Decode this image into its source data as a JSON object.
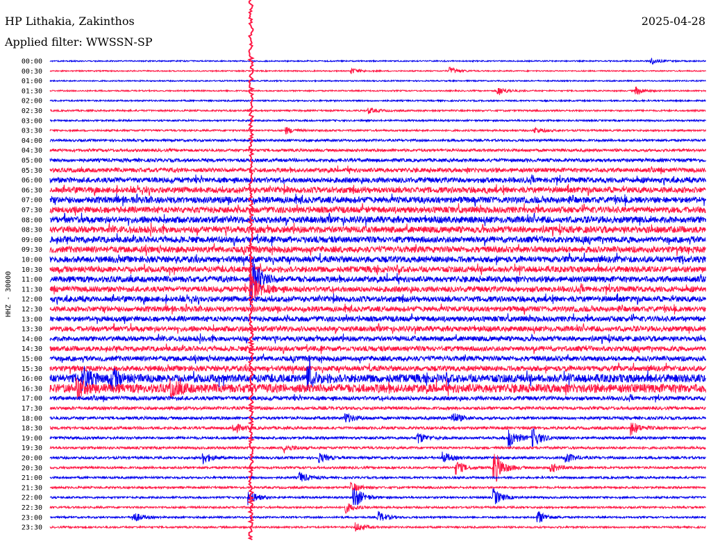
{
  "header": {
    "station": "HP Lithakia, Zakinthos",
    "date": "2025-04-28",
    "filter": "Applied filter: WWSSN-SP"
  },
  "colors": {
    "trace_a": "#0000ee",
    "trace_b": "#ff1744",
    "background": "#ffffff",
    "text": "#000000"
  },
  "chart_data": {
    "type": "line",
    "title": "HP Lithakia, Zakinthos",
    "ylabel": "HHZ - 30000",
    "x_range_minutes": [
      0,
      30
    ],
    "row_labels": [
      "00:00",
      "00:30",
      "01:00",
      "01:30",
      "02:00",
      "02:30",
      "03:00",
      "03:30",
      "04:00",
      "04:30",
      "05:00",
      "05:30",
      "06:00",
      "06:30",
      "07:00",
      "07:30",
      "08:00",
      "08:30",
      "09:00",
      "09:30",
      "10:00",
      "10:30",
      "11:00",
      "11:30",
      "12:00",
      "12:30",
      "13:00",
      "13:30",
      "14:00",
      "14:30",
      "15:00",
      "15:30",
      "16:00",
      "16:30",
      "17:00",
      "17:30",
      "18:00",
      "18:30",
      "19:00",
      "19:30",
      "20:00",
      "20:30",
      "21:00",
      "21:30",
      "22:00",
      "22:30",
      "23:00",
      "23:30"
    ],
    "row_colors": [
      "trace_a",
      "trace_b"
    ],
    "noise_level": [
      0.4,
      0.4,
      0.4,
      0.45,
      0.5,
      0.55,
      0.55,
      0.6,
      0.75,
      0.9,
      1.1,
      1.4,
      1.7,
      1.9,
      2.0,
      2.0,
      2.1,
      2.1,
      2.0,
      2.0,
      2.0,
      1.9,
      1.9,
      1.8,
      1.8,
      1.7,
      1.7,
      1.7,
      1.6,
      1.6,
      1.6,
      1.7,
      2.6,
      2.8,
      1.3,
      1.0,
      0.95,
      0.9,
      0.85,
      0.8,
      0.8,
      0.75,
      0.7,
      0.7,
      0.65,
      0.65,
      0.6,
      0.6
    ],
    "events": [
      {
        "row": 0,
        "minute": 27.5,
        "amplitude": 0.7
      },
      {
        "row": 1,
        "minute": 13.8,
        "amplitude": 0.6
      },
      {
        "row": 1,
        "minute": 18.3,
        "amplitude": 0.8
      },
      {
        "row": 3,
        "minute": 20.5,
        "amplitude": 1.0
      },
      {
        "row": 3,
        "minute": 26.8,
        "amplitude": 0.9
      },
      {
        "row": 5,
        "minute": 14.6,
        "amplitude": 0.6
      },
      {
        "row": 7,
        "minute": 10.8,
        "amplitude": 0.7
      },
      {
        "row": 7,
        "minute": 22.2,
        "amplitude": 0.6
      },
      {
        "row": 22,
        "minute": 9.2,
        "amplitude": 6.0
      },
      {
        "row": 23,
        "minute": 9.2,
        "amplitude": 4.0
      },
      {
        "row": 32,
        "minute": 1.5,
        "amplitude": 2.2
      },
      {
        "row": 32,
        "minute": 2.8,
        "amplitude": 2.0
      },
      {
        "row": 32,
        "minute": 11.8,
        "amplitude": 2.0
      },
      {
        "row": 33,
        "minute": 1.2,
        "amplitude": 2.0
      },
      {
        "row": 33,
        "minute": 5.5,
        "amplitude": 1.8
      },
      {
        "row": 36,
        "minute": 13.5,
        "amplitude": 1.1
      },
      {
        "row": 36,
        "minute": 18.4,
        "amplitude": 1.2
      },
      {
        "row": 37,
        "minute": 8.4,
        "amplitude": 1.0
      },
      {
        "row": 37,
        "minute": 26.6,
        "amplitude": 1.4
      },
      {
        "row": 38,
        "minute": 16.8,
        "amplitude": 1.3
      },
      {
        "row": 38,
        "minute": 21.0,
        "amplitude": 2.2
      },
      {
        "row": 38,
        "minute": 22.1,
        "amplitude": 2.0
      },
      {
        "row": 39,
        "minute": 10.7,
        "amplitude": 0.9
      },
      {
        "row": 40,
        "minute": 7.0,
        "amplitude": 1.2
      },
      {
        "row": 40,
        "minute": 12.3,
        "amplitude": 1.0
      },
      {
        "row": 40,
        "minute": 18.0,
        "amplitude": 1.1
      },
      {
        "row": 40,
        "minute": 23.6,
        "amplitude": 1.1
      },
      {
        "row": 41,
        "minute": 18.6,
        "amplitude": 1.4
      },
      {
        "row": 41,
        "minute": 20.3,
        "amplitude": 4.0
      },
      {
        "row": 41,
        "minute": 22.9,
        "amplitude": 1.1
      },
      {
        "row": 42,
        "minute": 11.4,
        "amplitude": 1.2
      },
      {
        "row": 43,
        "minute": 13.8,
        "amplitude": 1.0
      },
      {
        "row": 44,
        "minute": 9.1,
        "amplitude": 1.5
      },
      {
        "row": 44,
        "minute": 13.9,
        "amplitude": 2.6
      },
      {
        "row": 44,
        "minute": 20.3,
        "amplitude": 1.8
      },
      {
        "row": 45,
        "minute": 13.5,
        "amplitude": 1.2
      },
      {
        "row": 46,
        "minute": 3.8,
        "amplitude": 1.2
      },
      {
        "row": 46,
        "minute": 15.0,
        "amplitude": 1.3
      },
      {
        "row": 46,
        "minute": 22.3,
        "amplitude": 1.5
      },
      {
        "row": 47,
        "minute": 14.0,
        "amplitude": 0.9
      }
    ],
    "spike": {
      "minute": 9.2,
      "from_row": 0,
      "to_row": 47,
      "amplitude": 1.5
    }
  }
}
